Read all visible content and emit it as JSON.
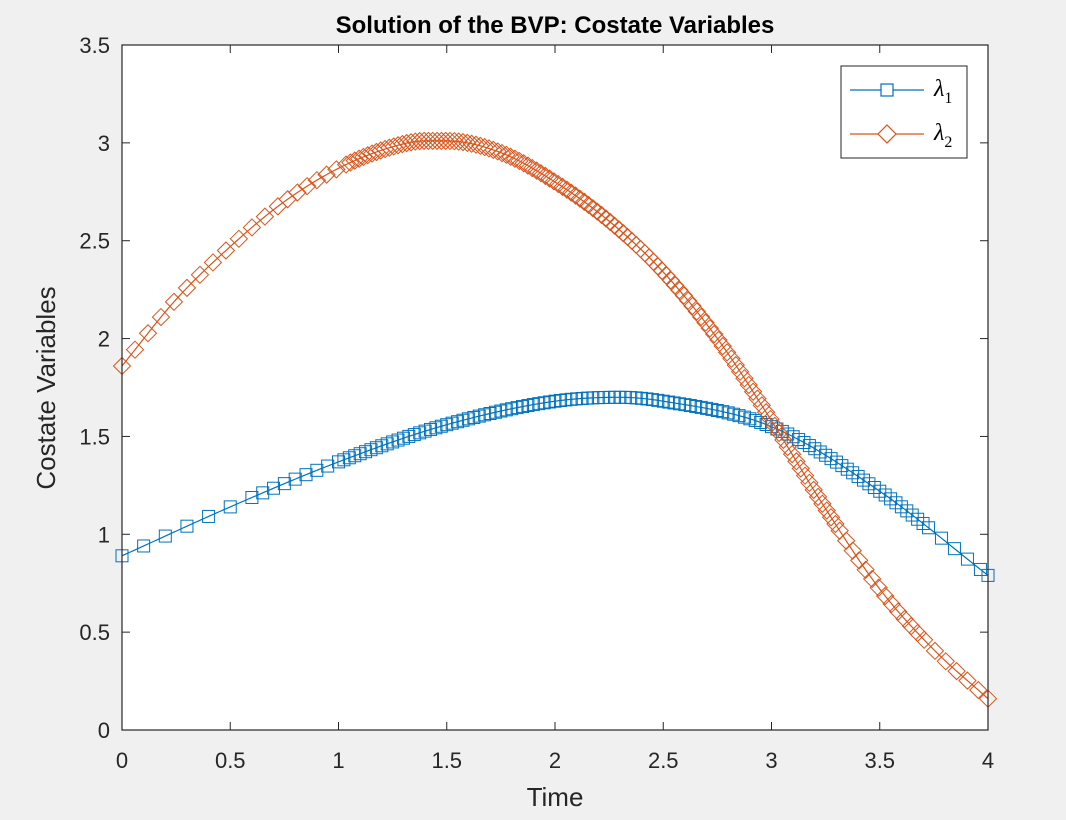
{
  "chart_data": {
    "type": "line",
    "title": "Solution of the BVP: Costate Variables",
    "xlabel": "Time",
    "ylabel": "Costate Variables",
    "xlim": [
      0,
      4
    ],
    "ylim": [
      0,
      3.5
    ],
    "xticks": [
      "0",
      "0.5",
      "1",
      "1.5",
      "2",
      "2.5",
      "3",
      "3.5",
      "4"
    ],
    "yticks": [
      "0",
      "0.5",
      "1",
      "1.5",
      "2",
      "2.5",
      "3",
      "3.5"
    ],
    "grid": false,
    "legend_position": "top-right",
    "series": [
      {
        "name": "λ1",
        "legend_symbol": "λ",
        "legend_subscript": "1",
        "color": "#0072BD",
        "marker": "square",
        "x": [
          0,
          0.5,
          1.0,
          1.5,
          2.0,
          2.3,
          2.5,
          3.0,
          3.5,
          4.0
        ],
        "y": [
          0.89,
          1.14,
          1.37,
          1.56,
          1.68,
          1.7,
          1.68,
          1.55,
          1.22,
          0.79
        ]
      },
      {
        "name": "λ2",
        "legend_symbol": "λ",
        "legend_subscript": "2",
        "color": "#D95319",
        "marker": "diamond",
        "x": [
          0,
          0.25,
          0.5,
          0.75,
          1.0,
          1.25,
          1.4,
          1.5,
          1.75,
          2.0,
          2.25,
          2.5,
          2.75,
          3.0,
          3.25,
          3.5,
          3.75,
          4.0
        ],
        "y": [
          1.86,
          2.2,
          2.47,
          2.7,
          2.87,
          2.98,
          3.01,
          3.01,
          2.95,
          2.8,
          2.6,
          2.34,
          2.0,
          1.58,
          1.13,
          0.72,
          0.41,
          0.16
        ]
      }
    ]
  }
}
